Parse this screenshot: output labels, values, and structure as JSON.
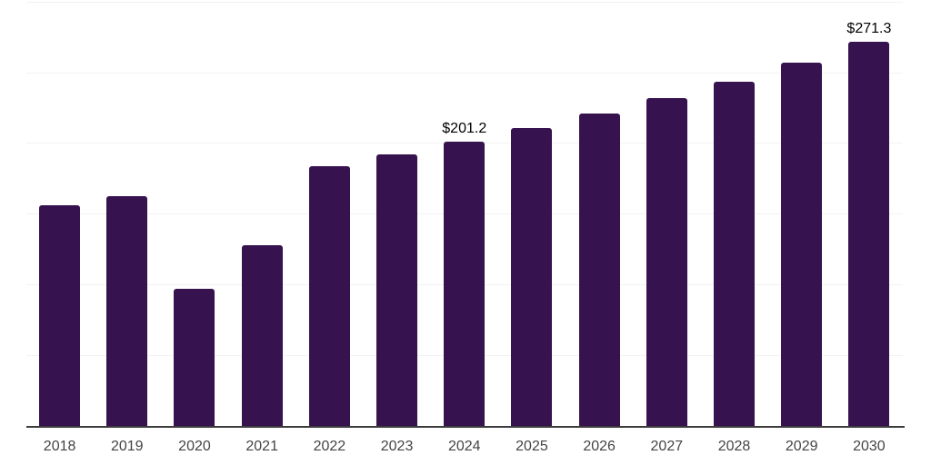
{
  "chart_data": {
    "type": "bar",
    "title": "",
    "xlabel": "",
    "ylabel": "",
    "categories": [
      "2018",
      "2019",
      "2020",
      "2021",
      "2022",
      "2023",
      "2024",
      "2025",
      "2026",
      "2027",
      "2028",
      "2029",
      "2030"
    ],
    "series": [
      {
        "name": "value",
        "values": [
          155.7,
          162.3,
          97.0,
          127.6,
          183.7,
          191.6,
          201.2,
          210.6,
          221.1,
          231.4,
          243.1,
          257.0,
          271.3
        ]
      }
    ],
    "data_labels": [
      {
        "category": "2024",
        "text": "$201.2"
      },
      {
        "category": "2030",
        "text": "$271.3"
      }
    ],
    "ylim": [
      0,
      300
    ],
    "gridline_step": 50,
    "grid": true,
    "legend_visible": false,
    "y_tick_labels_visible": false,
    "colors": {
      "bar": "#36124e",
      "gridline": "#f2f2f2",
      "axis_line": "#3c3c3c",
      "tick_label": "#444444",
      "data_label": "#000000",
      "background": "#ffffff"
    }
  }
}
